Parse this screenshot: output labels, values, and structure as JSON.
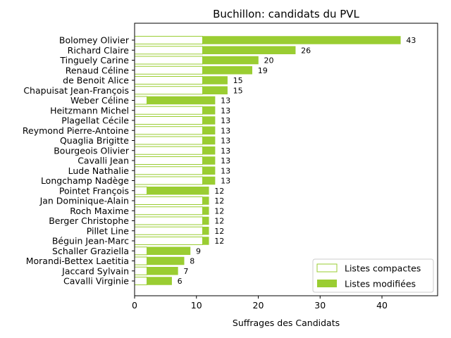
{
  "chart_data": {
    "type": "bar",
    "orientation": "horizontal",
    "stacked": true,
    "title": "Buchillon: candidats du PVL",
    "xlabel": "Suffrages des Candidats",
    "ylabel": "",
    "xlim": [
      0,
      49
    ],
    "xticks": [
      0,
      10,
      20,
      30,
      40
    ],
    "grid": false,
    "legend_position": "lower-right",
    "colors": {
      "compactes_edge": "#9acd32",
      "compactes_fill": "#ffffff",
      "modifiees": "#9acd32"
    },
    "categories": [
      "Bolomey Olivier",
      "Richard Claire",
      "Tinguely Carine",
      "Renaud Céline",
      "de Benoit Alice",
      "Chapuisat Jean-François",
      "Weber Céline",
      "Heitzmann Michel",
      "Plagellat Cécile",
      "Reymond Pierre-Antoine",
      "Quaglia Brigitte",
      "Bourgeois Olivier",
      "Cavalli Jean",
      "Lude Nathalie",
      "Longchamp Nadège",
      "Pointet François",
      "Jan Dominique-Alain",
      "Roch Maxime",
      "Berger Christophe",
      "Pillet Line",
      "Béguin Jean-Marc",
      "Schaller Graziella",
      "Morandi-Bettex Laetitia",
      "Jaccard Sylvain",
      "Cavalli Virginie"
    ],
    "series": [
      {
        "name": "Listes compactes",
        "values": [
          11,
          11,
          11,
          11,
          11,
          11,
          2,
          11,
          11,
          11,
          11,
          11,
          11,
          11,
          11,
          2,
          11,
          11,
          11,
          11,
          11,
          2,
          2,
          2,
          2
        ]
      },
      {
        "name": "Listes modifiées",
        "values": [
          32,
          15,
          9,
          8,
          4,
          4,
          11,
          2,
          2,
          2,
          2,
          2,
          2,
          2,
          2,
          10,
          1,
          1,
          1,
          1,
          1,
          7,
          6,
          5,
          4
        ]
      }
    ],
    "totals": [
      43,
      26,
      20,
      19,
      15,
      15,
      13,
      13,
      13,
      13,
      13,
      13,
      13,
      13,
      13,
      12,
      12,
      12,
      12,
      12,
      12,
      9,
      8,
      7,
      6
    ]
  }
}
